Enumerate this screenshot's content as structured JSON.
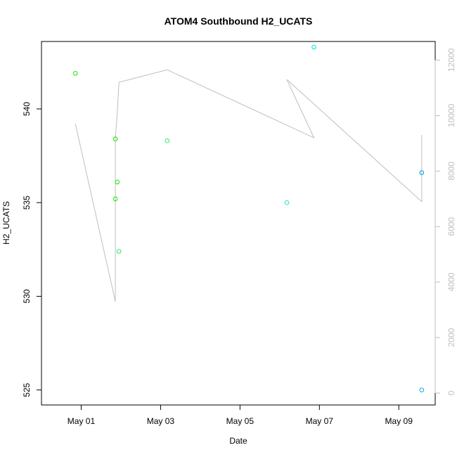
{
  "chart_data": {
    "type": "scatter",
    "title": "ATOM4 Southbound H2_UCATS",
    "xlabel": "Date",
    "ylabel": "H2_UCATS",
    "x_ticks": [
      "May 01",
      "May 03",
      "May 05",
      "May 07",
      "May 09"
    ],
    "x_tick_values": [
      "2018-05-01",
      "2018-05-03",
      "2018-05-05",
      "2018-05-07",
      "2018-05-09"
    ],
    "xlim": [
      "2018-04-30T00:00",
      "2018-05-09T22:00"
    ],
    "ylim": [
      524.2,
      543.6
    ],
    "y_ticks": [
      525,
      530,
      535,
      540
    ],
    "y2lim": [
      -430,
      12670
    ],
    "y2_ticks": [
      0,
      2000,
      4000,
      6000,
      8000,
      10000,
      12000
    ],
    "points": [
      {
        "x": "2018-04-30T20:30",
        "y": 541.9,
        "color": "#00ee00"
      },
      {
        "x": "2018-05-01T20:40",
        "y": 538.4,
        "color": "#00ee00"
      },
      {
        "x": "2018-05-01T20:40",
        "y": 535.2,
        "color": "#00ee00"
      },
      {
        "x": "2018-05-01T21:50",
        "y": 536.1,
        "color": "#00ee00"
      },
      {
        "x": "2018-05-01T22:50",
        "y": 532.4,
        "color": "#22ee66"
      },
      {
        "x": "2018-05-03T04:00",
        "y": 538.3,
        "color": "#22ee66"
      },
      {
        "x": "2018-05-06T04:20",
        "y": 535.0,
        "color": "#22ddcc"
      },
      {
        "x": "2018-05-06T20:40",
        "y": 543.3,
        "color": "#00e0e0"
      },
      {
        "x": "2018-05-09T13:50",
        "y": 536.6,
        "color": "#0099dd"
      },
      {
        "x": "2018-05-09T13:50",
        "y": 525.0,
        "color": "#00aadd"
      }
    ],
    "secondary_series": {
      "name": "",
      "color": "#bebebe",
      "points": [
        {
          "x": "2018-04-30T20:30",
          "y2": 9700
        },
        {
          "x": "2018-05-01T20:40",
          "y2": 3300
        },
        {
          "x": "2018-05-01T20:40",
          "y2": 9200
        },
        {
          "x": "2018-05-01T21:50",
          "y2": 10100
        },
        {
          "x": "2018-05-01T22:50",
          "y2": 11200
        },
        {
          "x": "2018-05-03T04:00",
          "y2": 11650
        },
        {
          "x": "2018-05-06T20:40",
          "y2": 9200
        },
        {
          "x": "2018-05-06T04:20",
          "y2": 11300
        },
        {
          "x": "2018-05-09T13:50",
          "y2": 6900
        },
        {
          "x": "2018-05-09T13:50",
          "y2": 9300
        }
      ]
    }
  }
}
